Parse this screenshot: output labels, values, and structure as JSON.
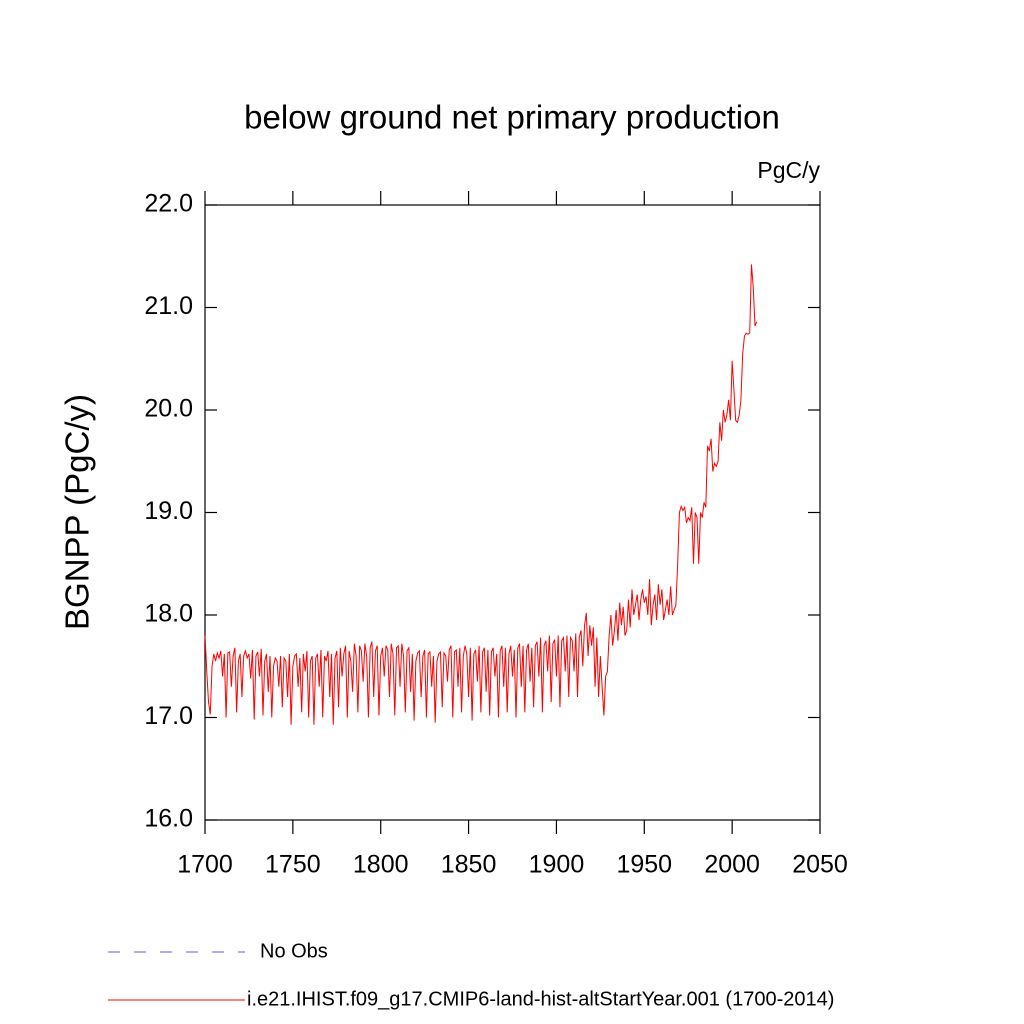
{
  "chart_data": {
    "type": "line",
    "title": "below ground net primary production",
    "units": "PgC/y",
    "ylabel": "BGNPP  (PgC/y)",
    "xlim": [
      1700,
      2050
    ],
    "xticks": [
      1700,
      1750,
      1800,
      1850,
      1900,
      1950,
      2000,
      2050
    ],
    "ylim": [
      16,
      22
    ],
    "yticks": [
      {
        "value": 16,
        "label": "16.0"
      },
      {
        "value": 17,
        "label": "17.0"
      },
      {
        "value": 18,
        "label": "18.0"
      },
      {
        "value": 19,
        "label": "19.0"
      },
      {
        "value": 20,
        "label": "20.0"
      },
      {
        "value": 21,
        "label": "21.0"
      },
      {
        "value": 22,
        "label": "22.0"
      }
    ],
    "obs": {
      "name": "No Obs",
      "color": "#6a5acd",
      "dash": "12 14"
    },
    "x": [
      1700,
      1701,
      1702,
      1703,
      1704,
      1705,
      1706,
      1707,
      1708,
      1709,
      1710,
      1711,
      1712,
      1713,
      1714,
      1715,
      1716,
      1717,
      1718,
      1719,
      1720,
      1721,
      1722,
      1723,
      1724,
      1725,
      1726,
      1727,
      1728,
      1729,
      1730,
      1731,
      1732,
      1733,
      1734,
      1735,
      1736,
      1737,
      1738,
      1739,
      1740,
      1741,
      1742,
      1743,
      1744,
      1745,
      1746,
      1747,
      1748,
      1749,
      1750,
      1751,
      1752,
      1753,
      1754,
      1755,
      1756,
      1757,
      1758,
      1759,
      1760,
      1761,
      1762,
      1763,
      1764,
      1765,
      1766,
      1767,
      1768,
      1769,
      1770,
      1771,
      1772,
      1773,
      1774,
      1775,
      1776,
      1777,
      1778,
      1779,
      1780,
      1781,
      1782,
      1783,
      1784,
      1785,
      1786,
      1787,
      1788,
      1789,
      1790,
      1791,
      1792,
      1793,
      1794,
      1795,
      1796,
      1797,
      1798,
      1799,
      1800,
      1801,
      1802,
      1803,
      1804,
      1805,
      1806,
      1807,
      1808,
      1809,
      1810,
      1811,
      1812,
      1813,
      1814,
      1815,
      1816,
      1817,
      1818,
      1819,
      1820,
      1821,
      1822,
      1823,
      1824,
      1825,
      1826,
      1827,
      1828,
      1829,
      1830,
      1831,
      1832,
      1833,
      1834,
      1835,
      1836,
      1837,
      1838,
      1839,
      1840,
      1841,
      1842,
      1843,
      1844,
      1845,
      1846,
      1847,
      1848,
      1849,
      1850,
      1851,
      1852,
      1853,
      1854,
      1855,
      1856,
      1857,
      1858,
      1859,
      1860,
      1861,
      1862,
      1863,
      1864,
      1865,
      1866,
      1867,
      1868,
      1869,
      1870,
      1871,
      1872,
      1873,
      1874,
      1875,
      1876,
      1877,
      1878,
      1879,
      1880,
      1881,
      1882,
      1883,
      1884,
      1885,
      1886,
      1887,
      1888,
      1889,
      1890,
      1891,
      1892,
      1893,
      1894,
      1895,
      1896,
      1897,
      1898,
      1899,
      1900,
      1901,
      1902,
      1903,
      1904,
      1905,
      1906,
      1907,
      1908,
      1909,
      1910,
      1911,
      1912,
      1913,
      1914,
      1915,
      1916,
      1917,
      1918,
      1919,
      1920,
      1921,
      1922,
      1923,
      1924,
      1925,
      1926,
      1927,
      1928,
      1929,
      1930,
      1931,
      1932,
      1933,
      1934,
      1935,
      1936,
      1937,
      1938,
      1939,
      1940,
      1941,
      1942,
      1943,
      1944,
      1945,
      1946,
      1947,
      1948,
      1949,
      1950,
      1951,
      1952,
      1953,
      1954,
      1955,
      1956,
      1957,
      1958,
      1959,
      1960,
      1961,
      1962,
      1963,
      1964,
      1965,
      1966,
      1967,
      1968,
      1969,
      1970,
      1971,
      1972,
      1973,
      1974,
      1975,
      1976,
      1977,
      1978,
      1979,
      1980,
      1981,
      1982,
      1983,
      1984,
      1985,
      1986,
      1987,
      1988,
      1989,
      1990,
      1991,
      1992,
      1993,
      1994,
      1995,
      1996,
      1997,
      1998,
      1999,
      2000,
      2001,
      2002,
      2003,
      2004,
      2005,
      2006,
      2007,
      2008,
      2009,
      2010,
      2011,
      2012,
      2013,
      2014
    ],
    "series": [
      {
        "name": "i.e21.IHIST.f09_g17.CMIP6-land-hist-altStartYear.001 (1700-2014)",
        "color": "#ff0000",
        "values": [
          17.8,
          17.45,
          17.15,
          17.03,
          17.5,
          17.62,
          17.55,
          17.63,
          17.58,
          17.65,
          17.4,
          17.62,
          17.0,
          17.63,
          17.64,
          17.3,
          17.6,
          17.68,
          17.05,
          17.55,
          17.62,
          17.2,
          17.6,
          17.65,
          17.58,
          17.62,
          17.38,
          17.66,
          16.98,
          17.6,
          17.64,
          17.4,
          17.67,
          17.02,
          17.55,
          17.62,
          17.25,
          17.6,
          17.0,
          17.5,
          17.58,
          17.55,
          17.3,
          17.6,
          17.1,
          17.58,
          17.55,
          17.2,
          17.62,
          16.93,
          17.5,
          17.6,
          17.62,
          17.3,
          17.58,
          17.05,
          17.62,
          17.45,
          17.65,
          17.0,
          17.55,
          17.6,
          16.93,
          17.58,
          17.62,
          17.3,
          17.66,
          17.0,
          17.6,
          17.55,
          17.65,
          17.2,
          17.62,
          16.93,
          17.58,
          17.65,
          17.1,
          17.68,
          17.4,
          17.62,
          17.7,
          17.0,
          17.65,
          17.55,
          17.25,
          17.72,
          17.6,
          17.05,
          17.7,
          17.65,
          17.35,
          17.72,
          17.6,
          17.0,
          17.68,
          17.74,
          17.2,
          17.65,
          17.7,
          17.02,
          17.6,
          17.68,
          17.4,
          17.7,
          17.66,
          17.2,
          17.72,
          17.62,
          17.02,
          17.68,
          17.7,
          17.3,
          17.72,
          17.6,
          17.05,
          17.65,
          17.68,
          17.25,
          17.62,
          16.97,
          17.55,
          17.63,
          17.65,
          17.2,
          17.6,
          17.66,
          17.0,
          17.62,
          17.64,
          17.3,
          17.6,
          16.95,
          17.55,
          17.62,
          17.64,
          17.1,
          17.63,
          17.6,
          17.35,
          17.66,
          17.7,
          17.0,
          17.64,
          17.66,
          17.3,
          17.68,
          17.05,
          17.6,
          17.7,
          17.62,
          17.2,
          17.68,
          16.97,
          17.62,
          17.66,
          17.35,
          17.7,
          17.05,
          17.64,
          17.68,
          17.25,
          17.66,
          17.02,
          17.64,
          17.68,
          17.4,
          17.62,
          17.0,
          17.65,
          17.7,
          17.3,
          17.68,
          17.05,
          17.62,
          17.7,
          17.4,
          17.66,
          17.0,
          17.68,
          17.72,
          17.3,
          17.7,
          17.05,
          17.66,
          17.72,
          17.35,
          17.68,
          17.1,
          17.7,
          17.74,
          17.4,
          17.78,
          17.05,
          17.7,
          17.75,
          17.45,
          17.8,
          17.15,
          17.72,
          17.76,
          17.4,
          17.8,
          17.1,
          17.75,
          17.78,
          17.45,
          17.8,
          17.2,
          17.78,
          17.75,
          17.45,
          17.82,
          17.2,
          17.78,
          17.85,
          17.5,
          17.9,
          18.02,
          17.6,
          17.9,
          17.7,
          17.88,
          17.3,
          17.78,
          17.2,
          17.6,
          17.3,
          17.02,
          17.4,
          17.45,
          17.8,
          18.0,
          17.7,
          17.85,
          18.05,
          17.75,
          18.12,
          17.9,
          18.08,
          17.8,
          17.85,
          18.15,
          17.88,
          18.25,
          18.0,
          18.1,
          18.2,
          17.95,
          18.15,
          18.25,
          18.12,
          18.18,
          18.0,
          18.35,
          17.9,
          18.1,
          18.2,
          17.95,
          18.3,
          18.1,
          18.25,
          17.95,
          18.05,
          18.15,
          18.0,
          18.28,
          18.0,
          18.05,
          18.1,
          18.5,
          19.0,
          19.06,
          19.02,
          19.05,
          18.9,
          18.95,
          18.92,
          19.05,
          18.5,
          19.0,
          18.95,
          18.5,
          19.0,
          18.95,
          19.1,
          19.05,
          19.65,
          19.6,
          19.72,
          19.4,
          19.48,
          19.45,
          19.5,
          19.88,
          19.7,
          20.0,
          19.88,
          19.95,
          20.1,
          19.9,
          20.48,
          20.2,
          19.9,
          19.88,
          19.95,
          20.1,
          20.55,
          20.72,
          20.75,
          20.74,
          20.75,
          21.42,
          21.2,
          20.82,
          20.86
        ]
      }
    ]
  }
}
